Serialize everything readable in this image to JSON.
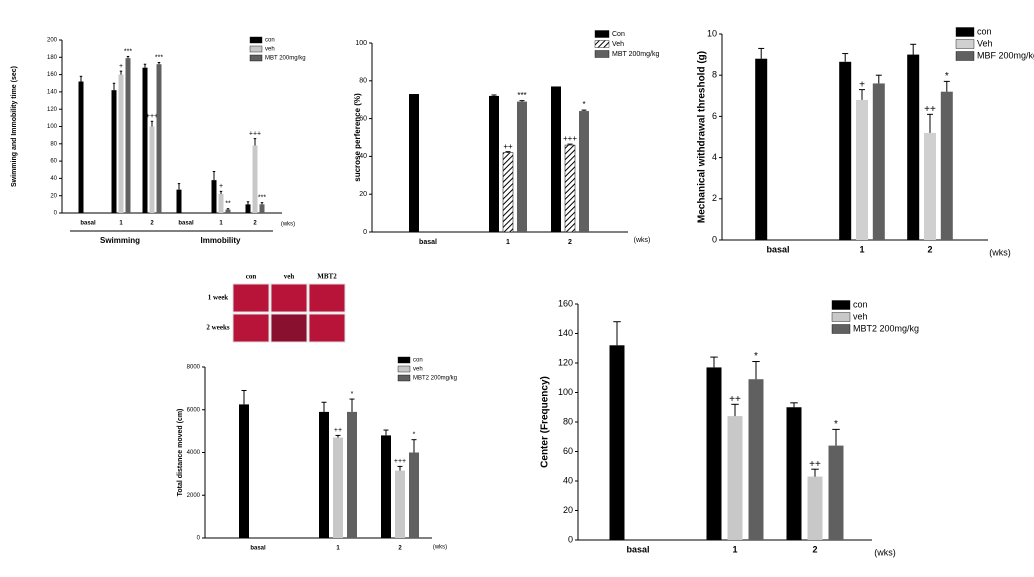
{
  "chart_data": [
    {
      "type": "bar",
      "y_label": "Swimming and Immobility time (sec)",
      "x_unit": "(wks)",
      "groups": [
        "Swimming",
        "Immobility"
      ],
      "categories": [
        "basal",
        "1",
        "2",
        "basal",
        "1",
        "2"
      ],
      "ylim": [
        0,
        200
      ],
      "yticks": [
        0,
        20,
        40,
        60,
        80,
        100,
        120,
        140,
        160,
        180,
        200
      ],
      "series": [
        {
          "name": "con",
          "color": "#000000",
          "values": [
            152,
            142,
            168,
            27,
            38,
            10
          ],
          "errors": [
            6,
            8,
            4,
            7,
            10,
            3
          ],
          "annotations": [
            null,
            null,
            null,
            null,
            null,
            null
          ]
        },
        {
          "name": "veh",
          "color": "#c8c8c8",
          "values": [
            null,
            160,
            100,
            null,
            22,
            78
          ],
          "errors": [
            null,
            4,
            6,
            null,
            3,
            8
          ],
          "annotations": [
            null,
            "+",
            "+++",
            null,
            "+",
            "+++"
          ]
        },
        {
          "name": "MBT 200mg/kg",
          "color": "#606060",
          "values": [
            null,
            179,
            172,
            null,
            4,
            10
          ],
          "errors": [
            null,
            2,
            2,
            null,
            1,
            2
          ],
          "annotations": [
            null,
            "***",
            "***",
            null,
            "**",
            "***"
          ]
        }
      ]
    },
    {
      "type": "bar",
      "y_label": "sucrose perference (%)",
      "x_unit": "(wks)",
      "categories": [
        "basal",
        "1",
        "2"
      ],
      "ylim": [
        0,
        100
      ],
      "yticks": [
        0,
        20,
        40,
        60,
        80,
        100
      ],
      "series": [
        {
          "name": "Con",
          "color": "#000000",
          "values": [
            73,
            72,
            77
          ],
          "errors": [
            null,
            0.5,
            null
          ],
          "annotations": [
            null,
            null,
            null
          ]
        },
        {
          "name": "Veh",
          "color": "#ffffff",
          "hatch": true,
          "values": [
            null,
            42,
            46
          ],
          "errors": [
            null,
            0.5,
            0.5
          ],
          "annotations": [
            null,
            "++",
            "+++"
          ]
        },
        {
          "name": "MBT 200mg/kg",
          "color": "#606060",
          "values": [
            null,
            69,
            64
          ],
          "errors": [
            null,
            0.5,
            0.5
          ],
          "annotations": [
            null,
            "***",
            "*"
          ]
        }
      ]
    },
    {
      "type": "bar",
      "y_label": "Mechanical withdrawal threshold (g)",
      "x_unit": "(wks)",
      "categories": [
        "basal",
        "1",
        "2"
      ],
      "ylim": [
        0,
        10
      ],
      "yticks": [
        0,
        2,
        4,
        6,
        8,
        10
      ],
      "series": [
        {
          "name": "con",
          "color": "#000000",
          "values": [
            8.8,
            8.65,
            9.0
          ],
          "errors": [
            0.5,
            0.4,
            0.5
          ],
          "annotations": [
            null,
            null,
            null
          ]
        },
        {
          "name": "Veh",
          "color": "#d0d0d0",
          "values": [
            null,
            6.8,
            5.2
          ],
          "errors": [
            null,
            0.5,
            0.9
          ],
          "annotations": [
            null,
            "+",
            "++"
          ]
        },
        {
          "name": "MBF 200mg/kg",
          "color": "#606060",
          "values": [
            null,
            7.6,
            7.2
          ],
          "errors": [
            null,
            0.4,
            0.5
          ],
          "annotations": [
            null,
            null,
            "*"
          ]
        }
      ]
    },
    {
      "type": "bar",
      "y_label": "Total distance moved (cm)",
      "x_unit": "(wks)",
      "image_panel": {
        "columns": [
          "con",
          "veh",
          "MBT2"
        ],
        "rows": [
          "1 week",
          "2 weeks"
        ]
      },
      "categories": [
        "basal",
        "1",
        "2"
      ],
      "ylim": [
        0,
        8000
      ],
      "yticks": [
        0,
        2000,
        4000,
        6000,
        8000
      ],
      "series": [
        {
          "name": "con",
          "color": "#000000",
          "values": [
            6250,
            5900,
            4800
          ],
          "errors": [
            650,
            450,
            250
          ],
          "annotations": [
            null,
            null,
            null
          ]
        },
        {
          "name": "veh",
          "color": "#c8c8c8",
          "values": [
            null,
            4700,
            3150
          ],
          "errors": [
            null,
            100,
            200
          ],
          "annotations": [
            null,
            "++",
            "+++"
          ]
        },
        {
          "name": "MBT2 200mg/kg",
          "color": "#606060",
          "values": [
            null,
            5900,
            4000
          ],
          "errors": [
            null,
            600,
            600
          ],
          "annotations": [
            null,
            "*",
            "*"
          ]
        }
      ]
    },
    {
      "type": "bar",
      "y_label": "Center (Frequency)",
      "x_unit": "(wks)",
      "categories": [
        "basal",
        "1",
        "2"
      ],
      "ylim": [
        0,
        160
      ],
      "yticks": [
        0,
        20,
        40,
        60,
        80,
        100,
        120,
        140,
        160
      ],
      "series": [
        {
          "name": "con",
          "color": "#000000",
          "values": [
            132,
            117,
            90
          ],
          "errors": [
            16,
            7,
            3
          ],
          "annotations": [
            null,
            null,
            null
          ]
        },
        {
          "name": "veh",
          "color": "#c8c8c8",
          "values": [
            null,
            84,
            43
          ],
          "errors": [
            null,
            8,
            5
          ],
          "annotations": [
            null,
            "++",
            "++"
          ]
        },
        {
          "name": "MBT2 200mg/kg",
          "color": "#606060",
          "values": [
            null,
            109,
            64
          ],
          "errors": [
            null,
            12,
            11
          ],
          "annotations": [
            null,
            "*",
            "*"
          ]
        }
      ]
    }
  ]
}
